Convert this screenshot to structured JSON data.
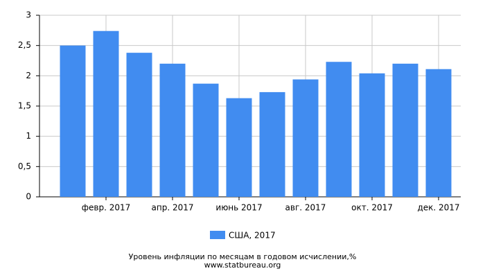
{
  "chart_data": {
    "type": "bar",
    "title": "Уровень инфляции по месяцам в годовом исчислении,%",
    "subtitle": "www.statbureau.org",
    "categories": [
      null,
      "февр. 2017",
      null,
      "апр. 2017",
      null,
      "июнь 2017",
      null,
      "авг. 2017",
      null,
      "окт. 2017",
      null,
      "дек. 2017"
    ],
    "series": [
      {
        "name": "США, 2017",
        "color": "#418cf0",
        "values": [
          2.5,
          2.74,
          2.38,
          2.2,
          1.87,
          1.63,
          1.73,
          1.94,
          2.23,
          2.04,
          2.2,
          2.11
        ]
      }
    ],
    "ylim": [
      0,
      3
    ],
    "yticks": [
      0,
      {
        "value": 0.5,
        "label": "0,5"
      },
      1,
      {
        "value": 1.5,
        "label": "1,5"
      },
      2,
      {
        "value": 2.5,
        "label": "2,5"
      },
      3
    ],
    "grid": true
  }
}
